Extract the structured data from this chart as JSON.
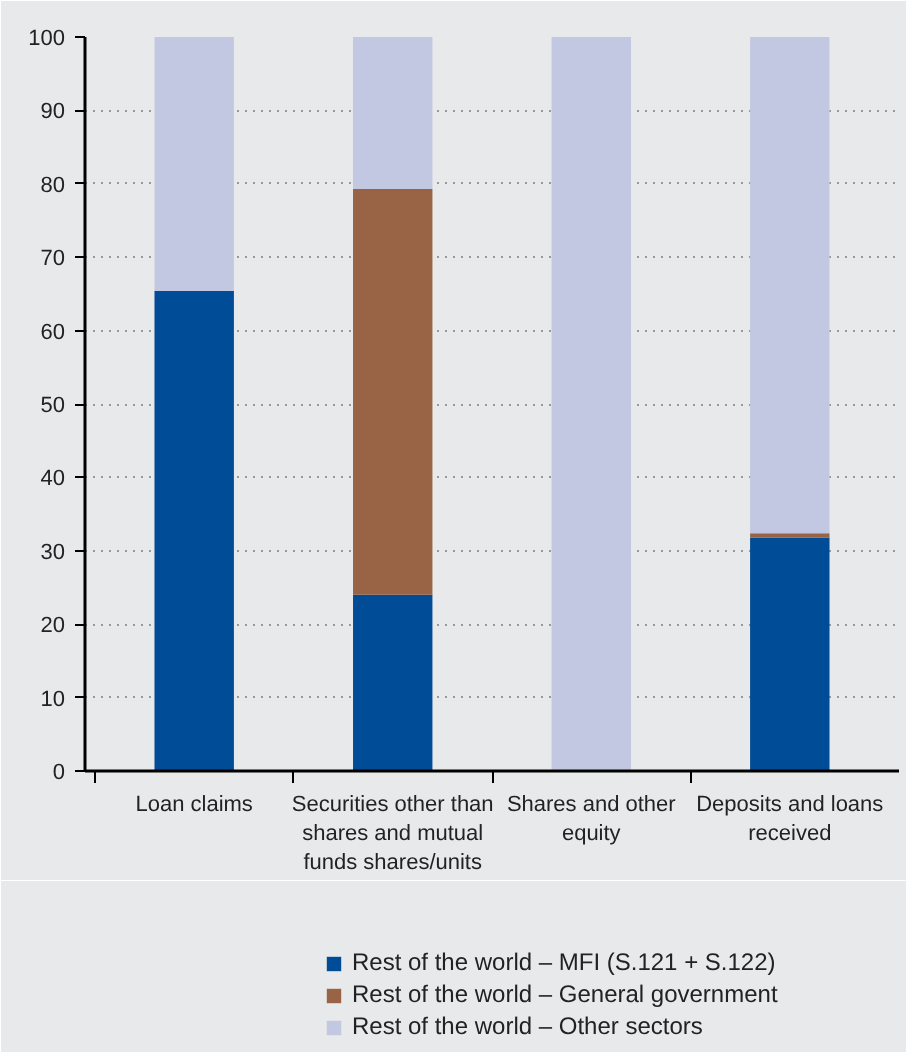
{
  "chart_data": {
    "type": "bar",
    "stacked": true,
    "categories": [
      "Loan claims",
      "Securities other than shares and mutual funds shares/units",
      "Shares and other equity",
      "Deposits and loans received"
    ],
    "series": [
      {
        "name": "Rest of the world – MFI (S.121 + S.122)",
        "color": "#004c97",
        "values": [
          65.4,
          24.0,
          0,
          31.8
        ]
      },
      {
        "name": "Rest of the world – General government",
        "color": "#996446",
        "values": [
          0,
          55.3,
          0,
          0.6
        ]
      },
      {
        "name": "Rest of the world – Other sectors",
        "color": "#c3c8e2",
        "values": [
          34.6,
          20.7,
          100,
          67.6
        ]
      }
    ],
    "ylim": [
      0,
      100
    ],
    "yticks": [
      0,
      10,
      20,
      30,
      40,
      50,
      60,
      70,
      80,
      90,
      100
    ],
    "grid": "y",
    "legend": "bottom"
  }
}
